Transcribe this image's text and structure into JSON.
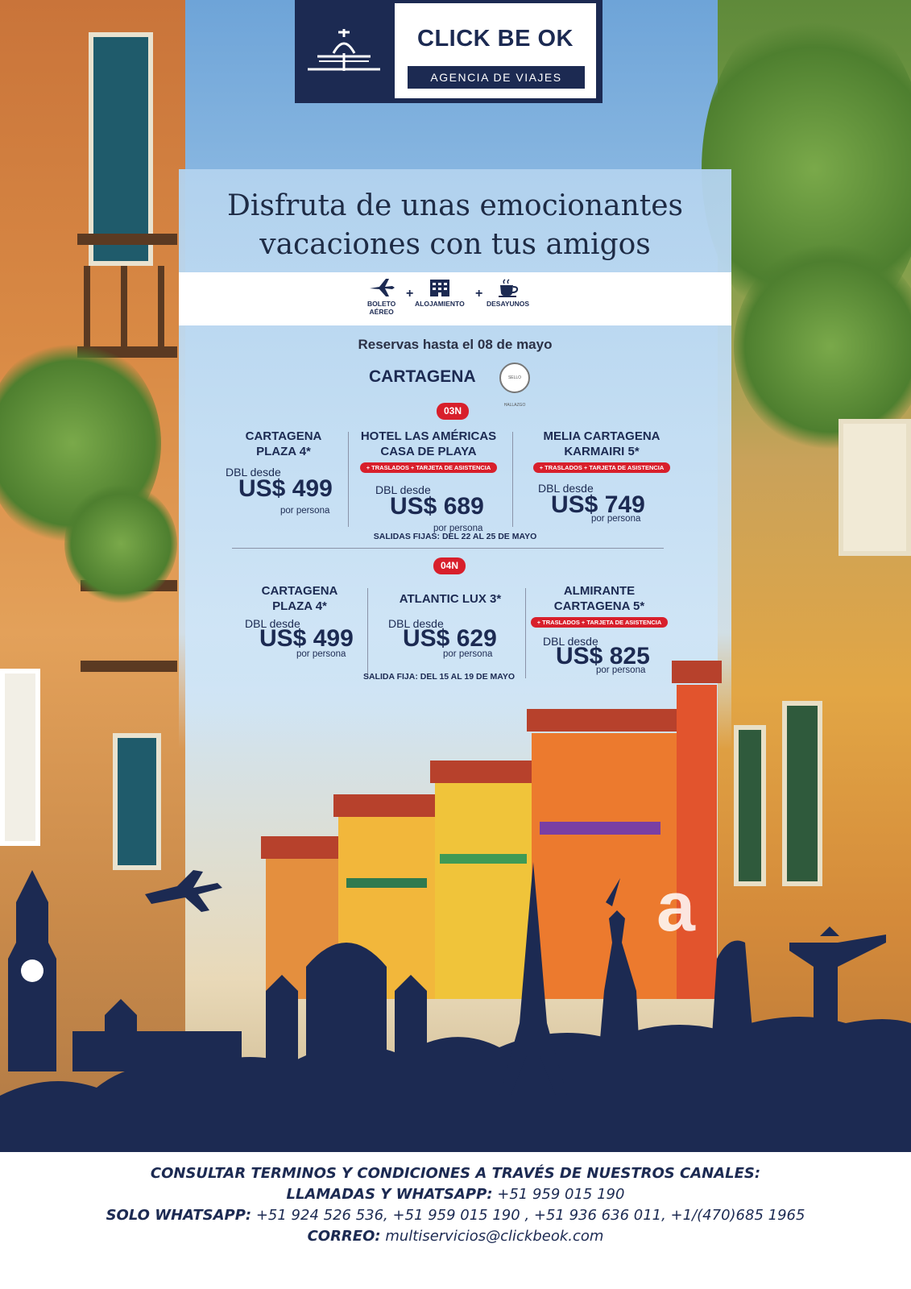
{
  "logo": {
    "title": "CLICK BE OK",
    "subtitle": "AGENCIA DE VIAJES"
  },
  "headline": {
    "line1": "Disfruta de unas emocionantes",
    "line2": "vacaciones con tus amigos"
  },
  "services": [
    {
      "label1": "BOLETO",
      "label2": "AÉREO",
      "icon": "plane-icon"
    },
    {
      "label1": "ALOJAMIENTO",
      "label2": "",
      "icon": "hotel-icon"
    },
    {
      "label1": "DESAYUNOS",
      "label2": "",
      "icon": "coffee-cup-icon"
    }
  ],
  "plus": "+",
  "reserve_text": "Reservas hasta el 08 de mayo",
  "city": "CARTAGENA",
  "seal_text": "SELLO HALLAZGO",
  "package_3n": {
    "nights": "03N",
    "dates": "SALIDAS FIJAS: DEL 22 AL 25 DE MAYO",
    "hotels": [
      {
        "name1": "CARTAGENA",
        "name2": "PLAZA 4*",
        "tag": "",
        "dbl": "DBL desde",
        "price": "US$ 499",
        "per": "por persona"
      },
      {
        "name1": "HOTEL LAS AMÉRICAS",
        "name2": "CASA DE PLAYA",
        "tag": "+ TRASLADOS + TARJETA DE ASISTENCIA",
        "dbl": "DBL desde",
        "price": "US$ 689",
        "per": "por persona"
      },
      {
        "name1": "MELIA CARTAGENA",
        "name2": "KARMAIRI 5*",
        "tag": "+ TRASLADOS + TARJETA DE ASISTENCIA",
        "dbl": "DBL desde",
        "price": "US$ 749",
        "per": "por persona"
      }
    ]
  },
  "package_4n": {
    "nights": "04N",
    "dates": "SALIDA FIJA: DEL 15 AL 19 DE MAYO",
    "hotels": [
      {
        "name1": "CARTAGENA",
        "name2": "PLAZA 4*",
        "tag": "",
        "dbl": "DBL desde",
        "price": "US$ 499",
        "per": "por persona"
      },
      {
        "name1": "ATLANTIC LUX 3*",
        "name2": "",
        "tag": "",
        "dbl": "DBL desde",
        "price": "US$ 629",
        "per": "por persona"
      },
      {
        "name1": "ALMIRANTE",
        "name2": "CARTAGENA 5*",
        "tag": "+ TRASLADOS + TARJETA DE ASISTENCIA",
        "dbl": "DBL desde",
        "price": "US$ 825",
        "per": "por persona"
      }
    ]
  },
  "watermark": "a",
  "footer": {
    "line1": "CONSULTAR TERMINOS Y CONDICIONES A TRAVÉS DE NUESTROS CANALES:",
    "line2_label": "LLAMADAS Y WHATSAPP:",
    "line2_value": " +51 959 015 190",
    "line3_label": "SOLO WHATSAPP:",
    "line3_value": " +51 924 526 536,  +51 959 015 190 ,  +51 936 636 011, +1/(470)685 1965",
    "line4_label": "CORREO:",
    "line4_value": " multiservicios@clickbeok.com"
  },
  "colors": {
    "navy": "#1c2a52",
    "red": "#d81f2b"
  }
}
